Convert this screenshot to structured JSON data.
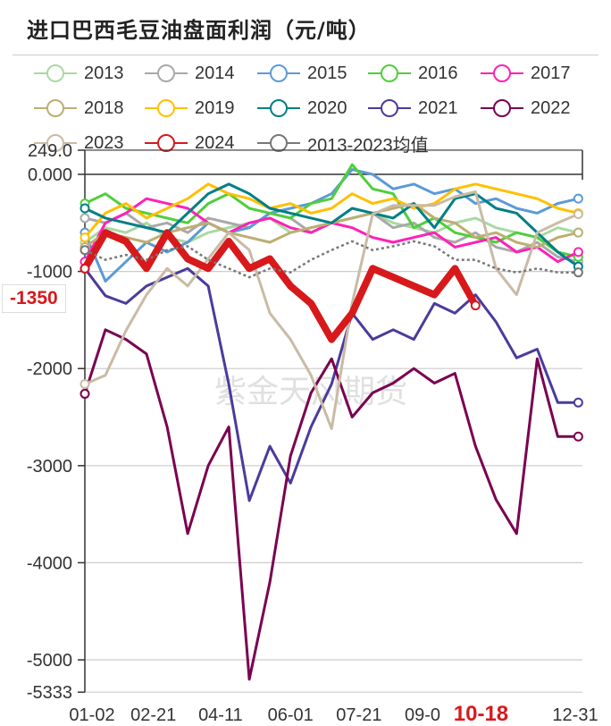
{
  "title": "进口巴西毛豆油盘面利润（元/吨）",
  "watermark": "紫金天风期货",
  "current_value_label": "-1350",
  "highlight_x_label": "10-18",
  "chart_data": {
    "type": "line",
    "title": "进口巴西毛豆油盘面利润（元/吨）",
    "xlabel": "",
    "ylabel": "",
    "x_days": [
      2,
      17,
      32,
      47,
      62,
      77,
      92,
      107,
      122,
      137,
      152,
      167,
      182,
      197,
      212,
      227,
      242,
      257,
      272,
      287,
      302,
      317,
      332,
      347,
      362
    ],
    "x_tick_labels": [
      {
        "day": 2,
        "label": "01-02"
      },
      {
        "day": 52,
        "label": "02-21"
      },
      {
        "day": 101,
        "label": "04-11"
      },
      {
        "day": 152,
        "label": "06-01"
      },
      {
        "day": 202,
        "label": "07-21"
      },
      {
        "day": 252,
        "label": "09-09"
      },
      {
        "day": 291,
        "label": "10-18"
      },
      {
        "day": 365,
        "label": "12-31"
      }
    ],
    "y_ticks": [
      {
        "v": 249,
        "label": "249.0"
      },
      {
        "v": 0,
        "label": "0.000"
      },
      {
        "v": -1000,
        "label": "-1000"
      },
      {
        "v": -2000,
        "label": "-2000"
      },
      {
        "v": -3000,
        "label": "-3000"
      },
      {
        "v": -4000,
        "label": "-4000"
      },
      {
        "v": -5000,
        "label": "-5000"
      },
      {
        "v": -5333,
        "label": "-5333"
      }
    ],
    "ylim": [
      -5333,
      249
    ],
    "grid": true,
    "legend_position": "top",
    "series": [
      {
        "name": "2013",
        "color": "#a9d9a2",
        "dash": false,
        "values": [
          -700,
          -550,
          -600,
          -500,
          -650,
          -700,
          -600,
          -550,
          -500,
          -450,
          -600,
          -550,
          -500,
          -450,
          -400,
          -500,
          -550,
          -600,
          -500,
          -450,
          -550,
          -600,
          -650,
          -550,
          -600
        ]
      },
      {
        "name": "2014",
        "color": "#a9a9a9",
        "dash": false,
        "values": [
          -450,
          -500,
          -400,
          -550,
          -500,
          -600,
          -450,
          -500,
          -550,
          -400,
          -450,
          -600,
          -500,
          -450,
          -400,
          -550,
          -500,
          -650,
          -700,
          -600,
          -750,
          -800,
          -700,
          -850,
          -900
        ]
      },
      {
        "name": "2015",
        "color": "#5b9bd5",
        "dash": false,
        "values": [
          -600,
          -1100,
          -900,
          -700,
          -800,
          -700,
          -500,
          -600,
          -550,
          -400,
          -350,
          -300,
          -200,
          50,
          0,
          -150,
          -100,
          -200,
          -150,
          -300,
          -250,
          -350,
          -400,
          -300,
          -250
        ]
      },
      {
        "name": "2016",
        "color": "#4fcf3a",
        "dash": false,
        "values": [
          -300,
          -200,
          -350,
          -400,
          -450,
          -500,
          -300,
          -200,
          -350,
          -400,
          -450,
          -300,
          -250,
          100,
          -150,
          -200,
          -550,
          -450,
          -600,
          -650,
          -700,
          -600,
          -650,
          -800,
          -850
        ]
      },
      {
        "name": "2017",
        "color": "#ff21b6",
        "dash": false,
        "values": [
          -900,
          -500,
          -400,
          -250,
          -300,
          -350,
          -500,
          -600,
          -500,
          -450,
          -550,
          -600,
          -500,
          -550,
          -650,
          -700,
          -650,
          -600,
          -750,
          -700,
          -650,
          -800,
          -750,
          -900,
          -800
        ]
      },
      {
        "name": "2018",
        "color": "#bdae72",
        "dash": false,
        "values": [
          -750,
          -600,
          -650,
          -700,
          -600,
          -550,
          -500,
          -600,
          -650,
          -700,
          -600,
          -550,
          -500,
          -450,
          -400,
          -350,
          -300,
          -450,
          -500,
          -650,
          -600,
          -700,
          -750,
          -650,
          -600
        ]
      },
      {
        "name": "2019",
        "color": "#ffc000",
        "dash": false,
        "values": [
          -650,
          -400,
          -300,
          -450,
          -350,
          -250,
          -100,
          -200,
          -250,
          -350,
          -300,
          -400,
          -350,
          -200,
          -300,
          -250,
          -350,
          -300,
          -150,
          -100,
          -150,
          -200,
          -250,
          -350,
          -400
        ]
      },
      {
        "name": "2020",
        "color": "#007f86",
        "dash": false,
        "values": [
          -350,
          -450,
          -500,
          -550,
          -600,
          -400,
          -200,
          -100,
          -200,
          -350,
          -400,
          -450,
          -500,
          -350,
          -400,
          -450,
          -300,
          -550,
          -250,
          -200,
          -350,
          -400,
          -600,
          -800,
          -950
        ]
      },
      {
        "name": "2021",
        "color": "#4b3b9b",
        "dash": false,
        "values": [
          -970,
          -1250,
          -1330,
          -1150,
          -1060,
          -970,
          -1150,
          -2160,
          -3360,
          -2800,
          -3180,
          -2600,
          -2160,
          -1430,
          -1700,
          -1600,
          -1700,
          -1330,
          -1430,
          -1240,
          -1520,
          -1890,
          -1800,
          -2350,
          -2350
        ]
      },
      {
        "name": "2022",
        "color": "#7a0050",
        "dash": false,
        "values": [
          -2260,
          -1600,
          -1700,
          -1850,
          -2600,
          -3700,
          -3000,
          -2600,
          -5200,
          -4200,
          -2900,
          -2250,
          -1900,
          -2500,
          -2250,
          -2150,
          -2000,
          -2150,
          -2050,
          -2800,
          -3350,
          -3700,
          -1900,
          -2700,
          -2700
        ]
      },
      {
        "name": "2023",
        "color": "#c9bba4",
        "dash": false,
        "values": [
          -2160,
          -2070,
          -1610,
          -1240,
          -970,
          -1150,
          -870,
          -600,
          -780,
          -1430,
          -1700,
          -2070,
          -2620,
          -1330,
          -410,
          -320,
          -320,
          -320,
          -230,
          -180,
          -970,
          -1240,
          -600,
          -500,
          -410
        ]
      },
      {
        "name": "2024",
        "color": "#d7191c",
        "dash": false,
        "values": [
          -970,
          -600,
          -690,
          -970,
          -600,
          -870,
          -970,
          -690,
          -970,
          -870,
          -1150,
          -1330,
          -1700,
          -1430,
          -970,
          -1060,
          -1150,
          -1240,
          -970,
          -1350,
          null,
          null,
          null,
          null,
          null
        ]
      },
      {
        "name": "2013-2023均值",
        "color": "#777777",
        "dash": true,
        "values": [
          -780,
          -880,
          -830,
          -880,
          -780,
          -740,
          -880,
          -970,
          -1060,
          -970,
          -1010,
          -880,
          -780,
          -690,
          -780,
          -740,
          -690,
          -740,
          -880,
          -880,
          -970,
          -1010,
          -970,
          -1010,
          -1010
        ]
      }
    ]
  }
}
